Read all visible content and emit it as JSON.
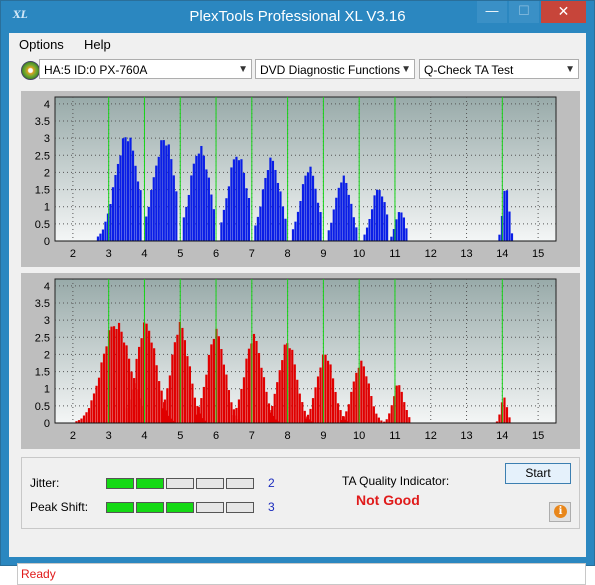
{
  "window": {
    "title": "PlexTools Professional XL V3.16",
    "app_icon_text": "XL",
    "buttons": {
      "minimize": "—",
      "maximize": "☐",
      "close": "✕"
    }
  },
  "menu": {
    "items": [
      "Options",
      "Help"
    ]
  },
  "toolbar": {
    "drive": "HA:5 ID:0  PX-760A",
    "function": "DVD Diagnostic Functions",
    "test": "Q-Check TA Test"
  },
  "chart_data": [
    {
      "type": "bar",
      "name": "upper",
      "color": "#0a1ee6",
      "xlim": [
        1.5,
        15.5
      ],
      "ylim": [
        0,
        4.2
      ],
      "x_ticks": [
        "2",
        "3",
        "4",
        "5",
        "6",
        "7",
        "8",
        "9",
        "10",
        "11",
        "12",
        "13",
        "14",
        "15"
      ],
      "y_ticks": [
        "0",
        "0.5",
        "1",
        "1.5",
        "2",
        "2.5",
        "3",
        "3.5",
        "4"
      ],
      "markers_x": [
        3,
        4,
        5,
        6,
        7,
        8,
        9,
        10,
        11,
        14
      ],
      "peaks": [
        {
          "center": 3.5,
          "amp": 3.2,
          "width": 0.45,
          "from": 2.7,
          "to": 3.95
        },
        {
          "center": 4.55,
          "amp": 3.1,
          "width": 0.42,
          "from": 4.05,
          "to": 4.95
        },
        {
          "center": 5.55,
          "amp": 2.85,
          "width": 0.38,
          "from": 5.1,
          "to": 5.95
        },
        {
          "center": 6.6,
          "amp": 2.65,
          "width": 0.37,
          "from": 6.15,
          "to": 6.95
        },
        {
          "center": 7.55,
          "amp": 2.45,
          "width": 0.35,
          "from": 7.1,
          "to": 7.95
        },
        {
          "center": 8.6,
          "amp": 2.2,
          "width": 0.33,
          "from": 8.15,
          "to": 8.95
        },
        {
          "center": 9.55,
          "amp": 1.95,
          "width": 0.3,
          "from": 9.15,
          "to": 9.95
        },
        {
          "center": 10.55,
          "amp": 1.6,
          "width": 0.28,
          "from": 10.15,
          "to": 10.85
        },
        {
          "center": 11.15,
          "amp": 0.95,
          "width": 0.18,
          "from": 10.9,
          "to": 11.35
        },
        {
          "center": 14.1,
          "amp": 1.75,
          "width": 0.12,
          "from": 13.85,
          "to": 14.35
        }
      ]
    },
    {
      "type": "bar",
      "name": "lower",
      "color": "#e00000",
      "xlim": [
        1.5,
        15.5
      ],
      "ylim": [
        0,
        4.2
      ],
      "x_ticks": [
        "2",
        "3",
        "4",
        "5",
        "6",
        "7",
        "8",
        "9",
        "10",
        "11",
        "12",
        "13",
        "14",
        "15"
      ],
      "y_ticks": [
        "0",
        "0.5",
        "1",
        "1.5",
        "2",
        "2.5",
        "3",
        "3.5",
        "4"
      ],
      "markers_x": [
        3,
        4,
        5,
        6,
        7,
        8,
        9,
        10,
        11,
        14
      ],
      "peaks": [
        {
          "center": 3.2,
          "amp": 3.05,
          "width": 0.55,
          "from": 2.1,
          "to": 3.95
        },
        {
          "center": 4.05,
          "amp": 3.0,
          "width": 0.4,
          "from": 3.5,
          "to": 4.95
        },
        {
          "center": 5.0,
          "amp": 2.95,
          "width": 0.36,
          "from": 4.5,
          "to": 5.9
        },
        {
          "center": 6.0,
          "amp": 2.75,
          "width": 0.36,
          "from": 5.45,
          "to": 6.9
        },
        {
          "center": 7.05,
          "amp": 2.6,
          "width": 0.36,
          "from": 6.5,
          "to": 7.9
        },
        {
          "center": 8.0,
          "amp": 2.45,
          "width": 0.35,
          "from": 7.5,
          "to": 8.9
        },
        {
          "center": 9.05,
          "amp": 2.1,
          "width": 0.33,
          "from": 8.5,
          "to": 9.9
        },
        {
          "center": 10.05,
          "amp": 1.85,
          "width": 0.32,
          "from": 9.5,
          "to": 10.9
        },
        {
          "center": 11.1,
          "amp": 1.15,
          "width": 0.22,
          "from": 10.7,
          "to": 11.45
        },
        {
          "center": 14.05,
          "amp": 0.8,
          "width": 0.12,
          "from": 13.85,
          "to": 14.3
        }
      ]
    }
  ],
  "meters": {
    "jitter": {
      "label": "Jitter:",
      "value": "2",
      "level": 2,
      "max": 5
    },
    "peak_shift": {
      "label": "Peak Shift:",
      "value": "3",
      "level": 3,
      "max": 5
    }
  },
  "ta_quality": {
    "label": "TA Quality Indicator:",
    "value": "Not Good"
  },
  "start_label": "Start",
  "info_icon": "i",
  "status": "Ready"
}
